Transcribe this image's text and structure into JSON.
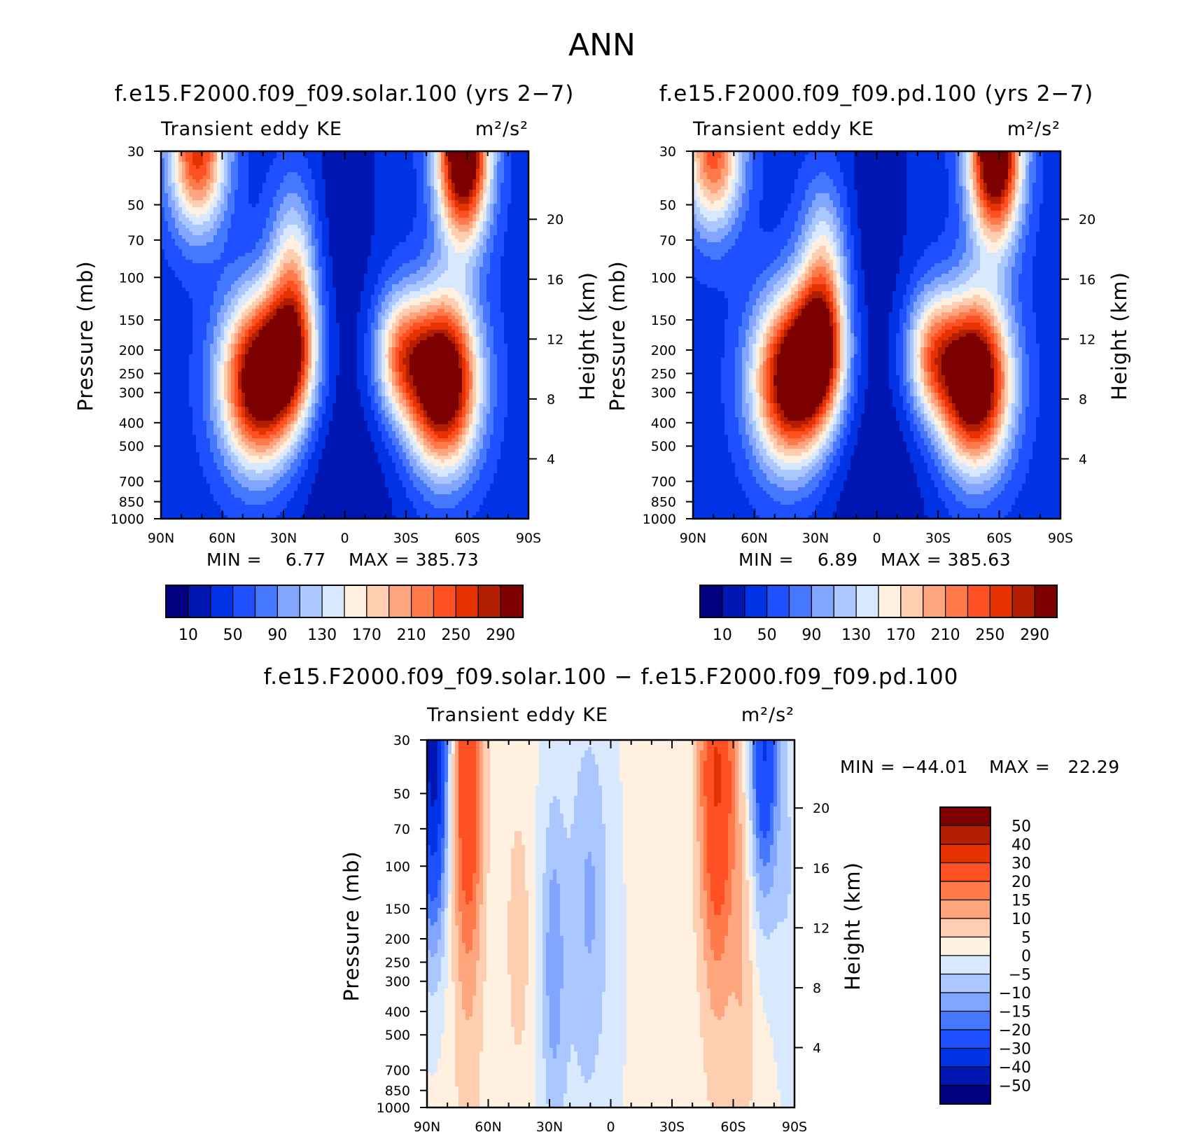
{
  "main_title": "ANN",
  "chart_data": [
    {
      "type": "heatmap",
      "title": "f.e15.F2000.f09_f09.solar.100 (yrs 2−7)",
      "subtitle_left": "Transient eddy KE",
      "units": "m²/s²",
      "xlabel": "",
      "ylabel": "Pressure (mb)",
      "ylabel_right": "Height (km)",
      "x_ticks": [
        "90N",
        "60N",
        "30N",
        "0",
        "30S",
        "60S",
        "90S"
      ],
      "y_ticks": [
        30,
        50,
        70,
        100,
        150,
        200,
        250,
        300,
        400,
        500,
        700,
        850,
        1000
      ],
      "y_right_ticks": [
        20,
        16,
        12,
        8,
        4
      ],
      "min_text": "MIN =    6.77",
      "max_text": "MAX = 385.73",
      "min": 6.77,
      "max": 385.73,
      "colorbar": {
        "orientation": "horizontal",
        "colors": [
          "#000080",
          "#0017b3",
          "#0032e6",
          "#1e50ff",
          "#4678ff",
          "#82a5ff",
          "#aac8ff",
          "#d7e8ff",
          "#fff0e0",
          "#ffcdaf",
          "#ffa57d",
          "#ff7a4b",
          "#ff5023",
          "#e63200",
          "#b41e00",
          "#7d0000"
        ],
        "labels": [
          "10",
          "50",
          "90",
          "130",
          "170",
          "210",
          "250",
          "290"
        ]
      },
      "field": {
        "base": 40,
        "blobs": [
          {
            "lat": 42,
            "p": 270,
            "amp": 300,
            "slat": 13,
            "sp": 0.16
          },
          {
            "lat": 26,
            "p": 205,
            "amp": 170,
            "slat": 9,
            "sp": 0.13
          },
          {
            "lat": -48,
            "p": 270,
            "amp": 330,
            "slat": 12,
            "sp": 0.16
          },
          {
            "lat": -27,
            "p": 210,
            "amp": 150,
            "slat": 9,
            "sp": 0.12
          },
          {
            "lat": -58,
            "p": 30,
            "amp": 330,
            "slat": 9,
            "sp": 0.17
          },
          {
            "lat": 72,
            "p": 30,
            "amp": 220,
            "slat": 10,
            "sp": 0.15
          },
          {
            "lat": 25,
            "p": 90,
            "amp": 110,
            "slat": 8,
            "sp": 0.16
          },
          {
            "lat": 0,
            "p": 850,
            "amp": -28,
            "slat": 20,
            "sp": 0.3
          },
          {
            "lat": 0,
            "p": 45,
            "amp": -28,
            "slat": 10,
            "sp": 0.3
          }
        ]
      }
    },
    {
      "type": "heatmap",
      "title": "f.e15.F2000.f09_f09.pd.100 (yrs 2−7)",
      "subtitle_left": "Transient eddy KE",
      "units": "m²/s²",
      "xlabel": "",
      "ylabel": "Pressure (mb)",
      "ylabel_right": "Height (km)",
      "x_ticks": [
        "90N",
        "60N",
        "30N",
        "0",
        "30S",
        "60S",
        "90S"
      ],
      "y_ticks": [
        30,
        50,
        70,
        100,
        150,
        200,
        250,
        300,
        400,
        500,
        700,
        850,
        1000
      ],
      "y_right_ticks": [
        20,
        16,
        12,
        8,
        4
      ],
      "min_text": "MIN =    6.89",
      "max_text": "MAX = 385.63",
      "min": 6.89,
      "max": 385.63,
      "colorbar": {
        "orientation": "horizontal",
        "colors": [
          "#000080",
          "#0017b3",
          "#0032e6",
          "#1e50ff",
          "#4678ff",
          "#82a5ff",
          "#aac8ff",
          "#d7e8ff",
          "#fff0e0",
          "#ffcdaf",
          "#ffa57d",
          "#ff7a4b",
          "#ff5023",
          "#e63200",
          "#b41e00",
          "#7d0000"
        ],
        "labels": [
          "10",
          "50",
          "90",
          "130",
          "170",
          "210",
          "250",
          "290"
        ]
      },
      "field": {
        "base": 40,
        "blobs": [
          {
            "lat": 42,
            "p": 270,
            "amp": 290,
            "slat": 13,
            "sp": 0.16
          },
          {
            "lat": 28,
            "p": 200,
            "amp": 190,
            "slat": 9,
            "sp": 0.13
          },
          {
            "lat": -48,
            "p": 270,
            "amp": 330,
            "slat": 12,
            "sp": 0.16
          },
          {
            "lat": -27,
            "p": 210,
            "amp": 150,
            "slat": 9,
            "sp": 0.12
          },
          {
            "lat": -58,
            "p": 30,
            "amp": 330,
            "slat": 9,
            "sp": 0.17
          },
          {
            "lat": 80,
            "p": 30,
            "amp": 200,
            "slat": 10,
            "sp": 0.15
          },
          {
            "lat": 26,
            "p": 90,
            "amp": 110,
            "slat": 8,
            "sp": 0.16
          },
          {
            "lat": 0,
            "p": 850,
            "amp": -28,
            "slat": 20,
            "sp": 0.3
          },
          {
            "lat": 0,
            "p": 45,
            "amp": -28,
            "slat": 10,
            "sp": 0.3
          }
        ]
      }
    },
    {
      "type": "heatmap",
      "title": "f.e15.F2000.f09_f09.solar.100 − f.e15.F2000.f09_f09.pd.100",
      "subtitle_left": "Transient eddy KE",
      "units": "m²/s²",
      "xlabel": "",
      "ylabel": "Pressure (mb)",
      "ylabel_right": "Height (km)",
      "x_ticks": [
        "90N",
        "60N",
        "30N",
        "0",
        "30S",
        "60S",
        "90S"
      ],
      "y_ticks": [
        30,
        50,
        70,
        100,
        150,
        200,
        250,
        300,
        400,
        500,
        700,
        850,
        1000
      ],
      "y_right_ticks": [
        20,
        16,
        12,
        8,
        4
      ],
      "min_text": "MIN = −44.01",
      "max_text": "MAX =   22.29",
      "min": -44.01,
      "max": 22.29,
      "colorbar": {
        "orientation": "vertical",
        "colors": [
          "#000080",
          "#0017b3",
          "#0032e6",
          "#1e50ff",
          "#4678ff",
          "#82a5ff",
          "#aac8ff",
          "#d7e8ff",
          "#fff0e0",
          "#ffcdaf",
          "#ffa57d",
          "#ff7a4b",
          "#ff5023",
          "#e63200",
          "#b41e00",
          "#7d0000"
        ],
        "labels": [
          "50",
          "40",
          "30",
          "20",
          "15",
          "10",
          "5",
          "0",
          "−5",
          "−10",
          "−15",
          "−20",
          "−30",
          "−40",
          "−50"
        ]
      },
      "field": {
        "base": 1.5,
        "blobs": [
          {
            "lat": 87,
            "p": 30,
            "amp": -48,
            "slat": 5,
            "sp": 0.35
          },
          {
            "lat": 70,
            "p": 40,
            "amp": 24,
            "slat": 5,
            "sp": 0.35
          },
          {
            "lat": 70,
            "p": 250,
            "amp": 5,
            "slat": 6,
            "sp": 0.7
          },
          {
            "lat": 45,
            "p": 200,
            "amp": 8,
            "slat": 4,
            "sp": 0.25
          },
          {
            "lat": 28,
            "p": 250,
            "amp": -12,
            "slat": 4,
            "sp": 0.3
          },
          {
            "lat": 15,
            "p": 400,
            "amp": -5,
            "slat": 14,
            "sp": 0.8
          },
          {
            "lat": 10,
            "p": 130,
            "amp": -8,
            "slat": 6,
            "sp": 0.3
          },
          {
            "lat": -52,
            "p": 40,
            "amp": 24,
            "slat": 6,
            "sp": 0.35
          },
          {
            "lat": -53,
            "p": 110,
            "amp": 6,
            "slat": 7,
            "sp": 0.6
          },
          {
            "lat": -75,
            "p": 30,
            "amp": -32,
            "slat": 5,
            "sp": 0.3
          },
          {
            "lat": -65,
            "p": 240,
            "amp": 7,
            "slat": 4,
            "sp": 0.45
          },
          {
            "lat": -87,
            "p": 120,
            "amp": -6,
            "slat": 5,
            "sp": 0.4
          }
        ]
      }
    }
  ]
}
